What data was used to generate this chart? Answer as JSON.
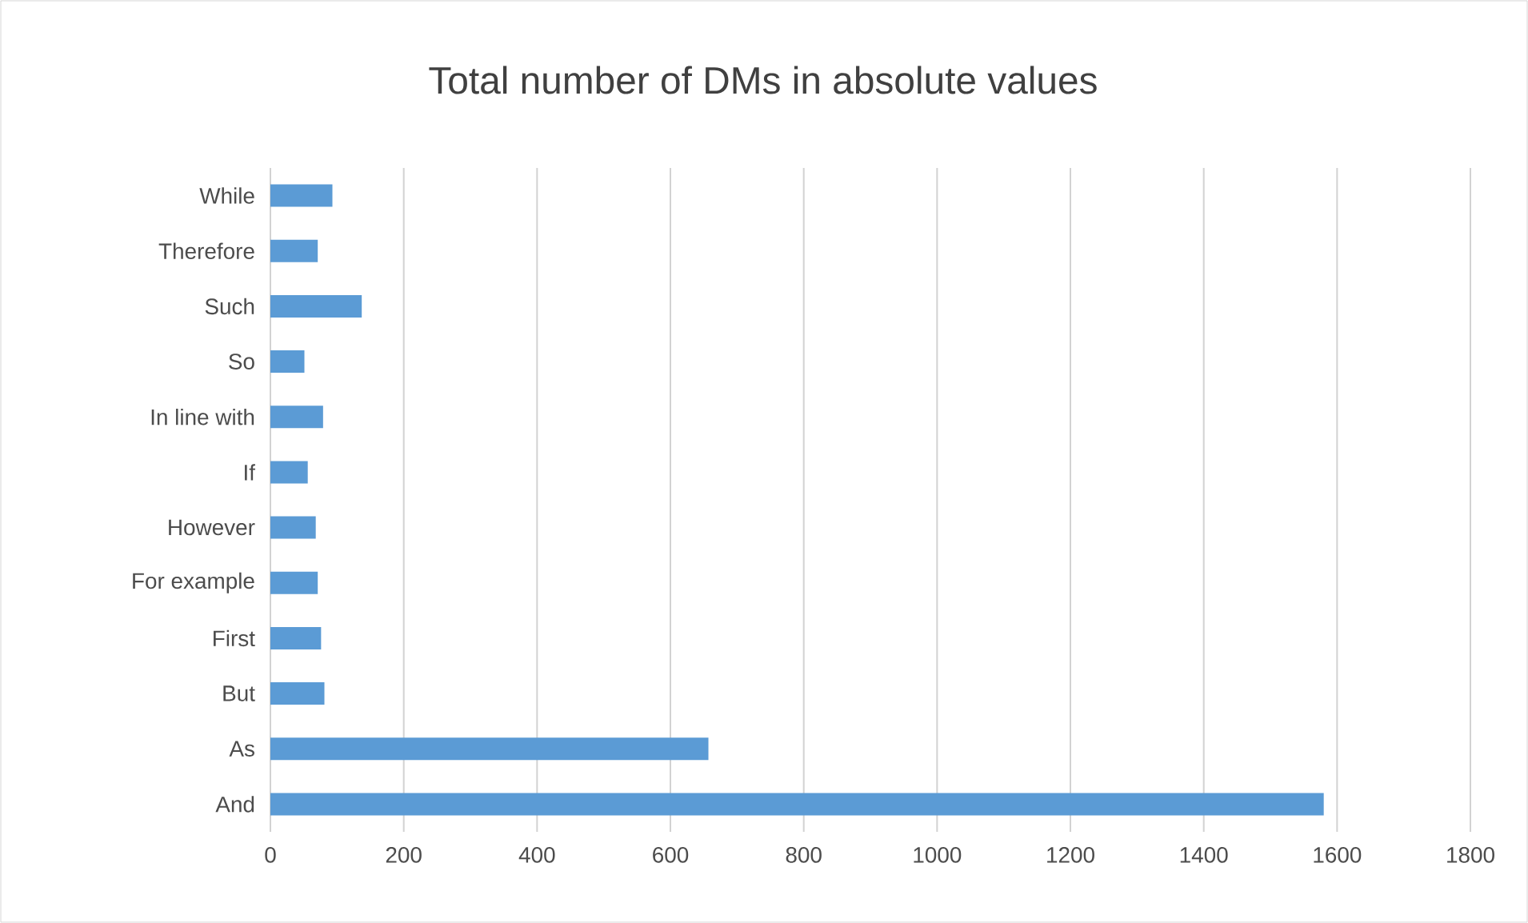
{
  "chart_data": {
    "type": "bar",
    "orientation": "horizontal",
    "title": "Total number of DMs in absolute values",
    "categories": [
      "While",
      "Therefore",
      "Such",
      "So",
      "In line with",
      "If",
      "However",
      "For example",
      "First",
      "But",
      "As",
      "And"
    ],
    "values": [
      93,
      71,
      137,
      51,
      79,
      56,
      68,
      71,
      76,
      81,
      657,
      1580
    ],
    "color": "#5b9bd5",
    "xlim": [
      0,
      1800
    ],
    "xticks": [
      0,
      200,
      400,
      600,
      800,
      1000,
      1200,
      1400,
      1600,
      1800
    ],
    "grid": "x"
  }
}
